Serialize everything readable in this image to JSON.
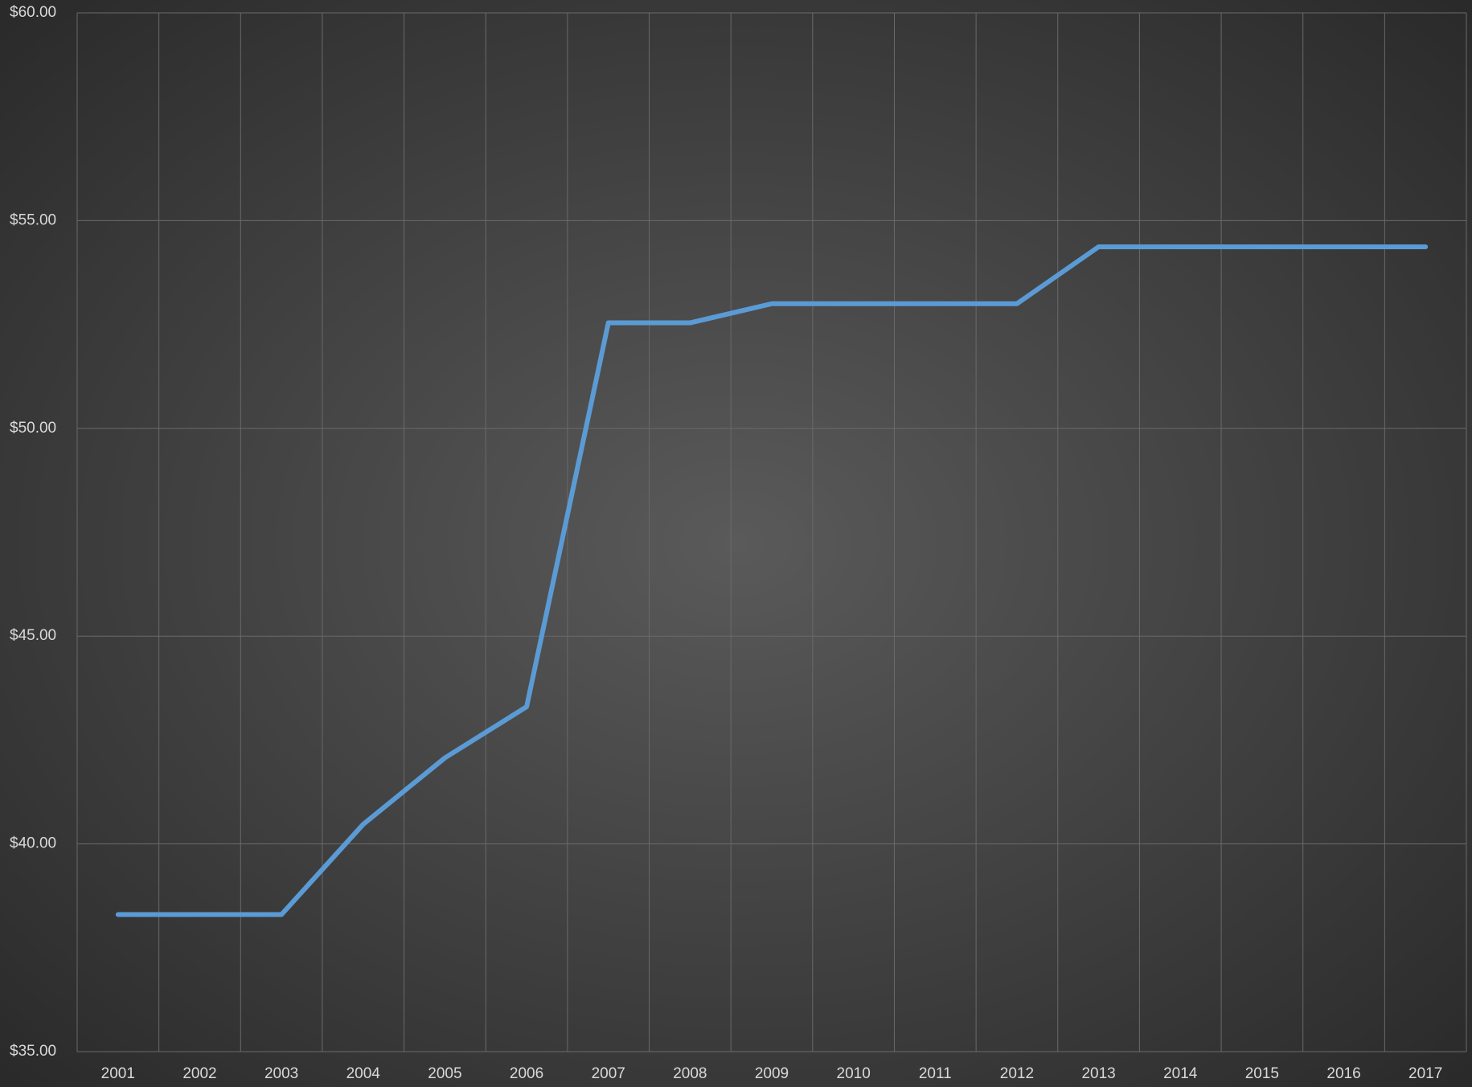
{
  "chart_data": {
    "type": "line",
    "categories": [
      "2001",
      "2002",
      "2003",
      "2004",
      "2005",
      "2006",
      "2007",
      "2008",
      "2009",
      "2010",
      "2011",
      "2012",
      "2013",
      "2014",
      "2015",
      "2016",
      "2017"
    ],
    "series": [
      {
        "color": "#5b9bd5",
        "values": [
          38.3,
          38.3,
          38.3,
          40.47,
          42.07,
          43.3,
          52.54,
          52.54,
          53.0,
          53.0,
          53.0,
          53.0,
          54.37,
          54.37,
          54.37,
          54.37,
          54.37
        ]
      }
    ],
    "ylim": [
      35,
      60
    ],
    "yticks": [
      {
        "value": 35,
        "label": "$35.00"
      },
      {
        "value": 40,
        "label": "$40.00"
      },
      {
        "value": 45,
        "label": "$45.00"
      },
      {
        "value": 50,
        "label": "$50.00"
      },
      {
        "value": 55,
        "label": "$55.00"
      },
      {
        "value": 60,
        "label": "$60.00"
      }
    ],
    "grid": true
  }
}
